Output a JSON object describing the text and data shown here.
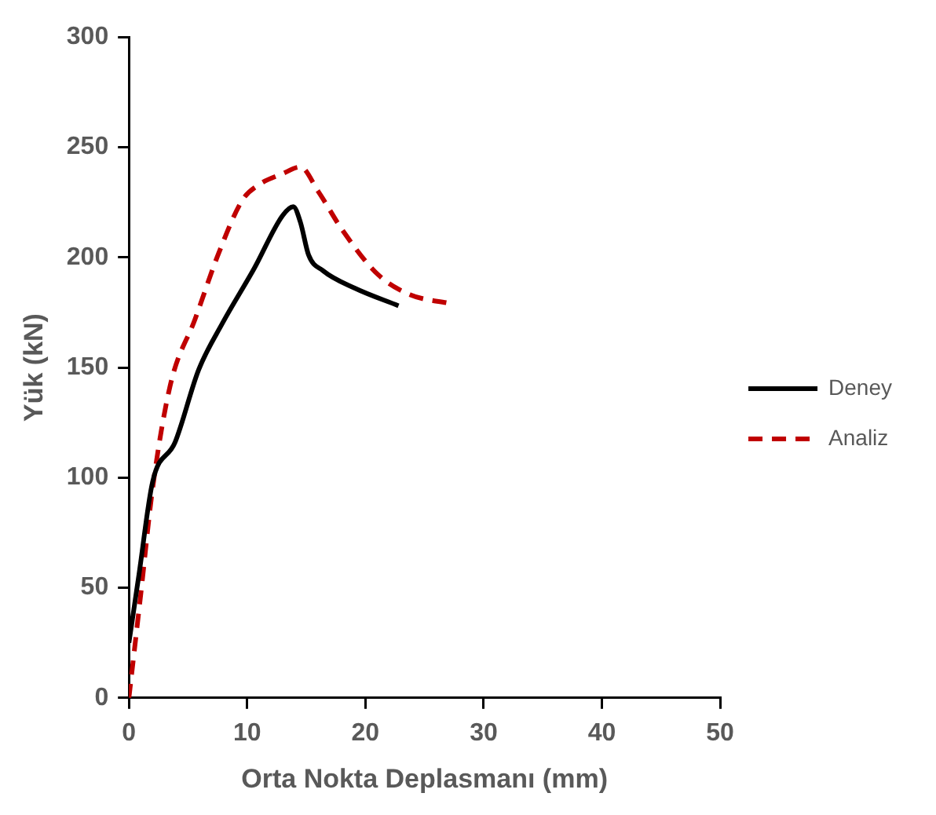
{
  "chart_data": {
    "type": "line",
    "xlabel": "Orta Nokta Deplasmanı (mm)",
    "ylabel": "Yük (kN)",
    "xlim": [
      0,
      50
    ],
    "xticks": [
      0,
      10,
      20,
      30,
      40,
      50
    ],
    "ylim": [
      0,
      300
    ],
    "yticks": [
      0,
      50,
      100,
      150,
      200,
      250,
      300
    ],
    "grid": false,
    "legend": "right",
    "marker": "none",
    "series": [
      {
        "name": "Deney",
        "color": "#000000",
        "line_style": "solid",
        "x": [
          0,
          0.85,
          2.0,
          3.9,
          5.9,
          7.9,
          10.6,
          13.0,
          13.9,
          14.5,
          15.2,
          16.4,
          19.1,
          22.8
        ],
        "values": [
          25,
          56,
          98,
          116,
          149,
          170,
          195,
          219,
          223,
          216,
          201,
          194,
          186,
          178
        ]
      },
      {
        "name": "Analiz",
        "color": "#c00000",
        "line_style": "dashed",
        "x": [
          0,
          1.0,
          2.0,
          3.5,
          5.6,
          7.6,
          9.6,
          11.0,
          13.0,
          14.5,
          16.0,
          18.1,
          21.1,
          23.8,
          27.2
        ],
        "values": [
          0,
          47,
          95,
          142,
          172,
          202,
          226,
          233,
          238,
          241,
          230,
          212,
          192,
          183,
          179
        ]
      }
    ]
  }
}
